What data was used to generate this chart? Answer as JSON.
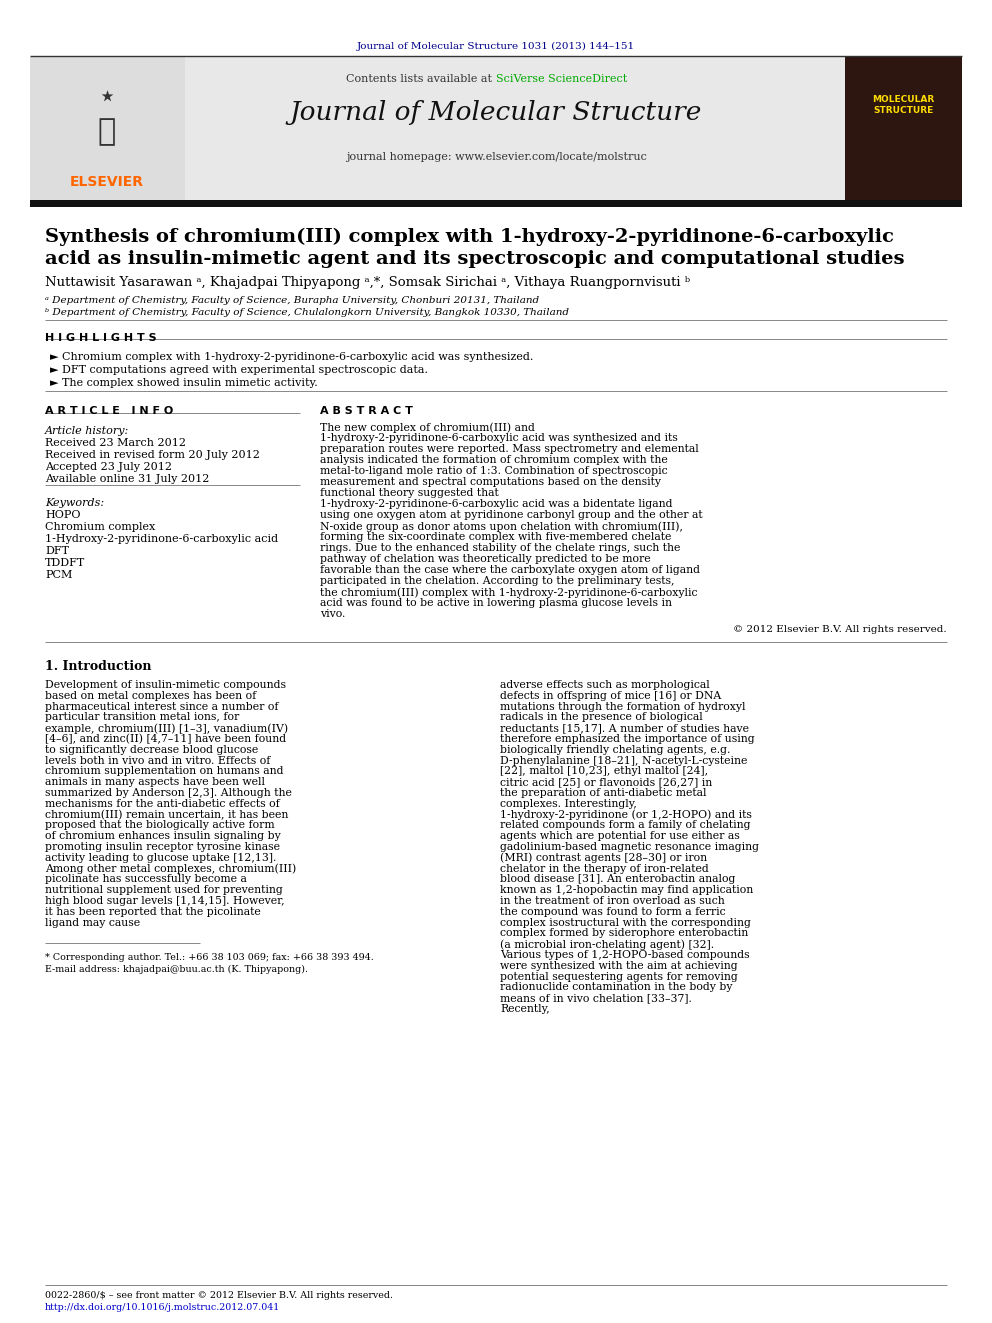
{
  "journal_ref": "Journal of Molecular Structure 1031 (2013) 144–151",
  "header_contents": "Contents lists available at ",
  "header_sciverse": "SciVerse ScienceDirect",
  "journal_title": "Journal of Molecular Structure",
  "journal_homepage": "journal homepage: www.elsevier.com/locate/molstruc",
  "article_title_line1": "Synthesis of chromium(III) complex with 1-hydroxy-2-pyridinone-6-carboxylic",
  "article_title_line2": "acid as insulin-mimetic agent and its spectroscopic and computational studies",
  "authors": "Nuttawisit Yasarawan ᵃ, Khajadpai Thipyapong ᵃ,*, Somsak Sirichai ᵃ, Vithaya Ruangpornvisuti ᵇ",
  "affil_a": "ᵃ Department of Chemistry, Faculty of Science, Burapha University, Chonburi 20131, Thailand",
  "affil_b": "ᵇ Department of Chemistry, Faculty of Science, Chulalongkorn University, Bangkok 10330, Thailand",
  "highlights_label": "H I G H L I G H T S",
  "highlight1": "► Chromium complex with 1-hydroxy-2-pyridinone-6-carboxylic acid was synthesized.",
  "highlight2": "► DFT computations agreed with experimental spectroscopic data.",
  "highlight3": "► The complex showed insulin mimetic activity.",
  "article_info_label": "A R T I C L E   I N F O",
  "abstract_label": "A B S T R A C T",
  "article_history_label": "Article history:",
  "received": "Received 23 March 2012",
  "received_revised": "Received in revised form 20 July 2012",
  "accepted": "Accepted 23 July 2012",
  "available": "Available online 31 July 2012",
  "keywords_label": "Keywords:",
  "keyword1": "HOPO",
  "keyword2": "Chromium complex",
  "keyword3": "1-Hydroxy-2-pyridinone-6-carboxylic acid",
  "keyword4": "DFT",
  "keyword5": "TDDFT",
  "keyword6": "PCM",
  "abstract_text": "The new complex of chromium(III) and 1-hydroxy-2-pyridinone-6-carboxylic acid was synthesized and its preparation routes were reported. Mass spectrometry and elemental analysis indicated the formation of chromium complex with the metal-to-ligand mole ratio of 1:3. Combination of spectroscopic measurement and spectral computations based on the density functional theory suggested that 1-hydroxy-2-pyridinone-6-carboxylic acid was a bidentate ligand using one oxygen atom at pyridinone carbonyl group and the other at N-oxide group as donor atoms upon chelation with chromium(III), forming the six-coordinate complex with five-membered chelate rings. Due to the enhanced stability of the chelate rings, such the pathway of chelation was theoretically predicted to be more favorable than the case where the carboxylate oxygen atom of ligand participated in the chelation. According to the preliminary tests, the chromium(III) complex with 1-hydroxy-2-pyridinone-6-carboxylic acid was found to be active in lowering plasma glucose levels in vivo.",
  "copyright": "© 2012 Elsevier B.V. All rights reserved.",
  "intro_label": "1. Introduction",
  "intro_indent": "    Development of insulin-mimetic compounds based on metal complexes has been of pharmaceutical interest since a number of particular transition metal ions, for example, chromium(III) [1–3], vanadium(IV) [4–6], and zinc(II) [4,7–11] have been found to significantly decrease blood glucose levels both in vivo and in vitro. Effects of chromium supplementation on humans and animals in many aspects have been well summarized by Anderson [2,3]. Although the mechanisms for the anti-diabetic effects of chromium(III) remain uncertain, it has been proposed that the biologically active form of chromium enhances insulin signaling by promoting insulin receptor tyrosine kinase activity leading to glucose uptake [12,13]. Among other metal complexes, chromium(III) picolinate has successfully become a nutritional supplement used for preventing high blood sugar levels [1,14,15]. However, it has been reported that the picolinate ligand may cause",
  "intro_col2": "adverse effects such as morphological defects in offspring of mice [16] or DNA mutations through the formation of hydroxyl radicals in the presence of biological reductants [15,17]. A number of studies have therefore emphasized the importance of using biologically friendly chelating agents, e.g. D-phenylalanine [18–21], N-acetyl-L-cysteine [22], maltol [10,23], ethyl maltol [24], citric acid [25] or flavonoids [26,27] in the preparation of anti-diabetic metal complexes. Interestingly, 1-hydroxy-2-pyridinone (or 1,2-HOPO) and its related compounds form a family of chelating agents which are potential for use either as gadolinium-based magnetic resonance imaging (MRI) contrast agents [28–30] or iron chelator in the therapy of iron-related blood disease [31]. An enterobactin analog known as 1,2-hopobactin may find application in the treatment of iron overload as such the compound was found to form a ferric complex isostructural with the corresponding complex formed by siderophore enterobactin (a microbial iron-chelating agent) [32]. Various types of 1,2-HOPO-based compounds were synthesized with the aim at achieving potential sequestering agents for removing radionuclide contamination in the body by means of in vivo chelation [33–37]. Recently,",
  "footnote1": "* Corresponding author. Tel.: +66 38 103 069; fax: +66 38 393 494.",
  "footnote2": "E-mail address: khajadpai@buu.ac.th (K. Thipyapong).",
  "footer1": "0022-2860/$ – see front matter © 2012 Elsevier B.V. All rights reserved.",
  "footer2": "http://dx.doi.org/10.1016/j.molstruc.2012.07.041",
  "bg_color": "#ffffff",
  "grey_bg": "#e8e8e8",
  "black_bar": "#111111",
  "thin_line": "#aaaaaa",
  "journal_ref_color": "#00008B",
  "sciverse_color": "#00aa00",
  "link_color": "#0000cc",
  "text_color": "#000000",
  "elsevier_orange": "#FF6600"
}
